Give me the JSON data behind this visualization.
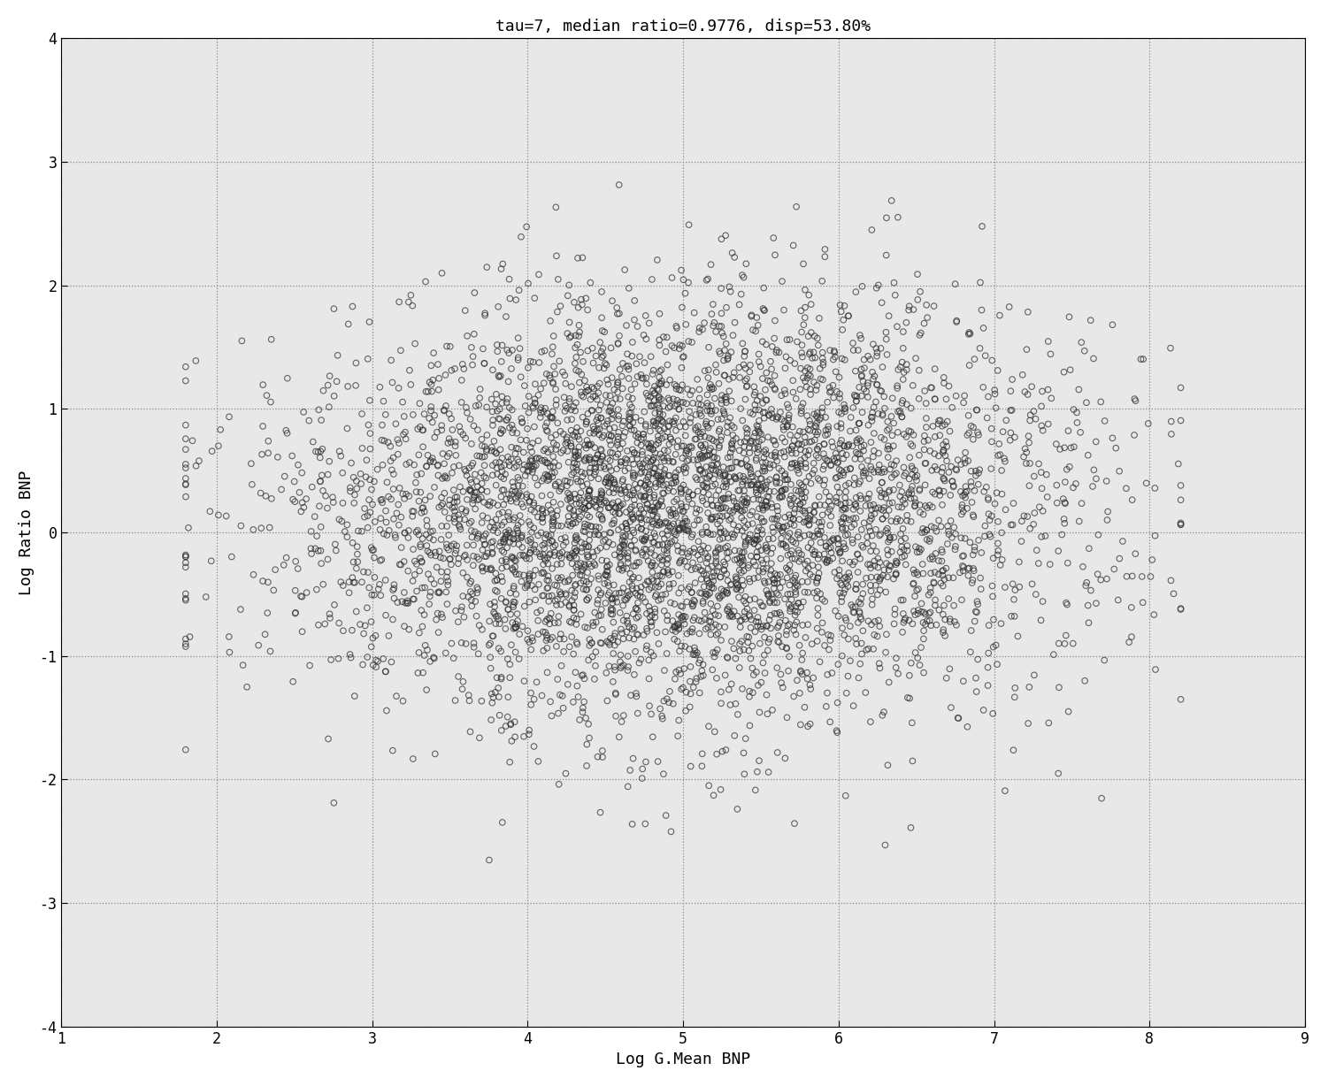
{
  "title": "tau=7, median ratio=0.9776, disp=53.80%",
  "xlabel": "Log G.Mean BNP",
  "ylabel": "Log Ratio BNP",
  "xlim": [
    1,
    9
  ],
  "ylim": [
    -4,
    4
  ],
  "xticks": [
    1,
    2,
    3,
    4,
    5,
    6,
    7,
    8,
    9
  ],
  "yticks": [
    -4,
    -3,
    -2,
    -1,
    0,
    1,
    2,
    3,
    4
  ],
  "grid_color": "#888888",
  "marker_facecolor": "none",
  "marker_edgecolor": "#333333",
  "background_color": "#e8e8e8",
  "fig_background": "#ffffff",
  "title_fontsize": 13,
  "axis_label_fontsize": 13,
  "tick_fontsize": 12,
  "n_points": 5000,
  "seed": 12345,
  "x_mean": 5.0,
  "x_std": 1.2,
  "x_min": 1.8,
  "x_max": 8.2,
  "y_mean": 0.25,
  "y_std": 0.75,
  "marker_size": 22,
  "marker_linewidth": 0.8,
  "alpha": 0.75
}
